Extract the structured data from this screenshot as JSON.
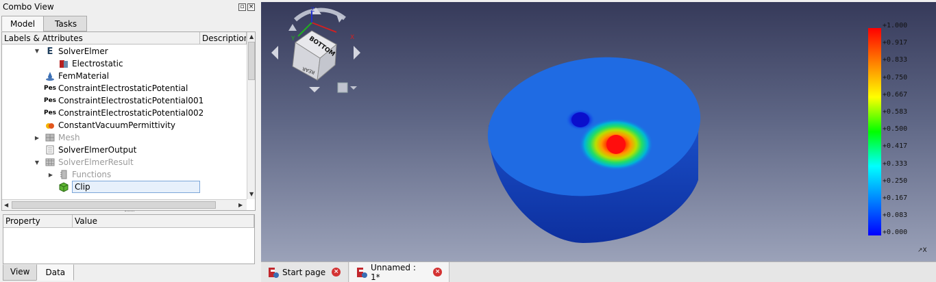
{
  "combo": {
    "title": "Combo View",
    "tabs": [
      "Model",
      "Tasks"
    ],
    "tree_headers": [
      "Labels & Attributes",
      "Description"
    ],
    "tree_items": [
      {
        "label": "SolverElmer",
        "icon": "E"
      },
      {
        "label": "Electrostatic",
        "icon": ""
      },
      {
        "label": "FemMaterial",
        "icon": ""
      },
      {
        "label": "ConstraintElectrostaticPotential",
        "icon": "Pes"
      },
      {
        "label": "ConstraintElectrostaticPotential001",
        "icon": "Pes"
      },
      {
        "label": "ConstraintElectrostaticPotential002",
        "icon": "Pes"
      },
      {
        "label": "ConstantVacuumPermittivity",
        "icon": ""
      },
      {
        "label": "Mesh",
        "icon": ""
      },
      {
        "label": "SolverElmerOutput",
        "icon": ""
      },
      {
        "label": "SolverElmerResult",
        "icon": ""
      },
      {
        "label": "Functions",
        "icon": ""
      },
      {
        "label": "Clip",
        "icon": ""
      }
    ],
    "prop_headers": [
      "Property",
      "Value"
    ],
    "bottom_tabs": [
      "View",
      "Data"
    ]
  },
  "view3d": {
    "navcube": {
      "face": "BOTTOM",
      "side_face": "REAR",
      "axis_x": "X",
      "axis_y": "Y",
      "axis_z": "Z"
    },
    "legend": {
      "labels": [
        "+1.000",
        "+0.917",
        "+0.833",
        "+0.750",
        "+0.667",
        "+0.583",
        "+0.500",
        "+0.417",
        "+0.333",
        "+0.250",
        "+0.167",
        "+0.083",
        "+0.000"
      ]
    },
    "corner_axis": "X"
  },
  "doc_tabs": [
    {
      "label": "Start page"
    },
    {
      "label": "Unnamed : 1*"
    }
  ],
  "colors": {
    "accent_red": "#d43333",
    "selection": "#e7f0fb"
  }
}
